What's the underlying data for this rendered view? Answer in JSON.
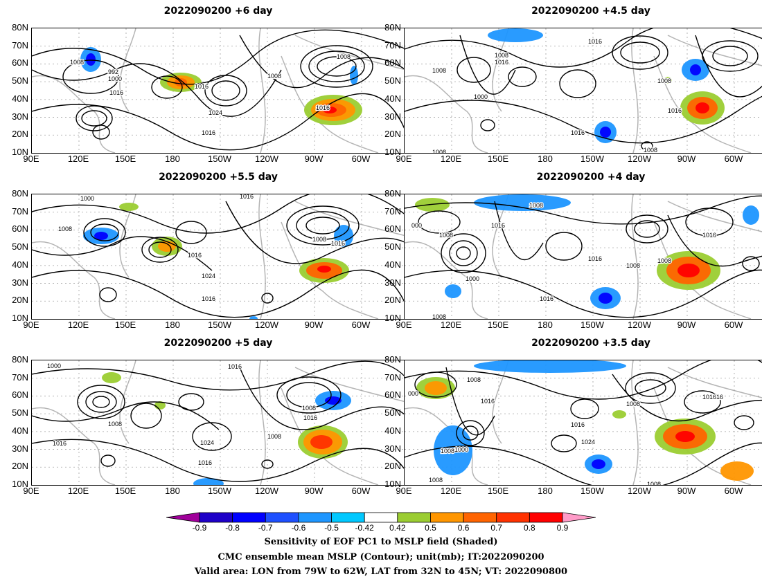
{
  "panels": [
    {
      "title": "2022090200  +6 day",
      "contour_labels": [
        "1008",
        "992",
        "1000",
        "1016",
        "1016",
        "1024",
        "1016",
        "1008",
        "1016",
        "1008"
      ]
    },
    {
      "title": "2022090200  +4.5  day",
      "contour_labels": [
        "1016",
        "1008",
        "1016",
        "1008",
        "1000",
        "1008",
        "1016",
        "1016",
        "1008",
        "1008"
      ]
    },
    {
      "title": "2022090200  +5.5  day",
      "contour_labels": [
        "1000",
        "1016",
        "1008",
        "1016",
        "1024",
        "1016",
        "1008",
        "1016"
      ]
    },
    {
      "title": "2022090200  +4  day",
      "contour_labels": [
        "1008",
        "000",
        "1008",
        "1016",
        "1000",
        "1016",
        "1016",
        "1008",
        "1008",
        "1016",
        "1008"
      ]
    },
    {
      "title": "2022090200  +5  day",
      "contour_labels": [
        "1000",
        "1016",
        "1008",
        "1016",
        "1024",
        "1016",
        "1008",
        "1008",
        "1016"
      ]
    },
    {
      "title": "2022090200  +3.5  day",
      "contour_labels": [
        "1008",
        "000",
        "1016",
        "1016",
        "1000",
        "1008",
        "1024",
        "1008",
        "1016",
        "1016",
        "1008",
        "1008"
      ]
    }
  ],
  "axes": {
    "lat_labels": [
      "80N",
      "70N",
      "60N",
      "50N",
      "40N",
      "30N",
      "20N",
      "10N"
    ],
    "lon_labels": [
      "90E",
      "120E",
      "150E",
      "180",
      "150W",
      "120W",
      "90W",
      "60W"
    ]
  },
  "colorbar": {
    "ticks": [
      "-0.9",
      "-0.8",
      "-0.7",
      "-0.6",
      "-0.5",
      "-0.42",
      "0.42",
      "0.5",
      "0.6",
      "0.7",
      "0.8",
      "0.9"
    ],
    "colors": [
      "#a0009a",
      "#1e00c8",
      "#0000ff",
      "#1e50ff",
      "#1e96ff",
      "#00c8ff",
      "#ffffff",
      "#9bcd32",
      "#ff9600",
      "#ff6400",
      "#ff3200",
      "#ff0000",
      "#ff9bc8"
    ]
  },
  "caption": {
    "line1": "Sensitivity of EOF PC1 to MSLP field (Shaded)",
    "line2": "CMC ensemble mean MSLP (Contour); unit(mb); IT:2022090200",
    "line3": "Valid area: LON from 79W to 62W, LAT from 32N to 45N; VT: 2022090800"
  }
}
